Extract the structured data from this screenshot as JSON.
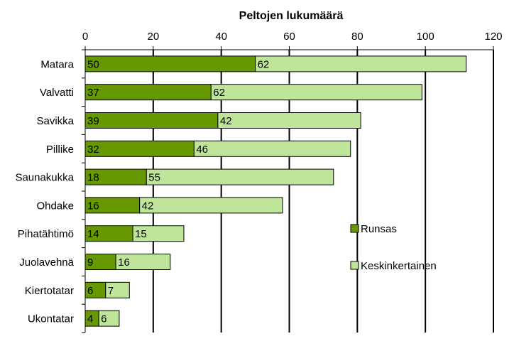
{
  "chart_data": {
    "type": "bar",
    "orientation": "horizontal",
    "stacked": true,
    "title": "Peltojen lukumäärä",
    "xlabel": "",
    "ylabel": "",
    "xlim": [
      0,
      120
    ],
    "xticks": [
      0,
      20,
      40,
      60,
      80,
      100,
      120
    ],
    "axis_position": "top",
    "grid": true,
    "legend_position": "right",
    "categories": [
      "Matara",
      "Valvatti",
      "Savikka",
      "Pillike",
      "Saunakukka",
      "Ohdake",
      "Pihatähtimö",
      "Juolavehnä",
      "Kiertotatar",
      "Ukontatar"
    ],
    "series": [
      {
        "name": "Runsas",
        "color": "#669900",
        "values": [
          50,
          37,
          39,
          32,
          18,
          16,
          14,
          9,
          6,
          4
        ]
      },
      {
        "name": "Keskinkertainen",
        "color": "#BFE59A",
        "values": [
          62,
          62,
          42,
          46,
          55,
          42,
          15,
          16,
          7,
          6
        ]
      }
    ],
    "data_labels": [
      [
        "50",
        "37",
        "39",
        "32",
        "18",
        "16",
        "14",
        "9",
        "6",
        "4"
      ],
      [
        "62",
        "62",
        "42",
        "46",
        "55",
        "42",
        "15",
        "16",
        "7",
        "6"
      ]
    ]
  }
}
